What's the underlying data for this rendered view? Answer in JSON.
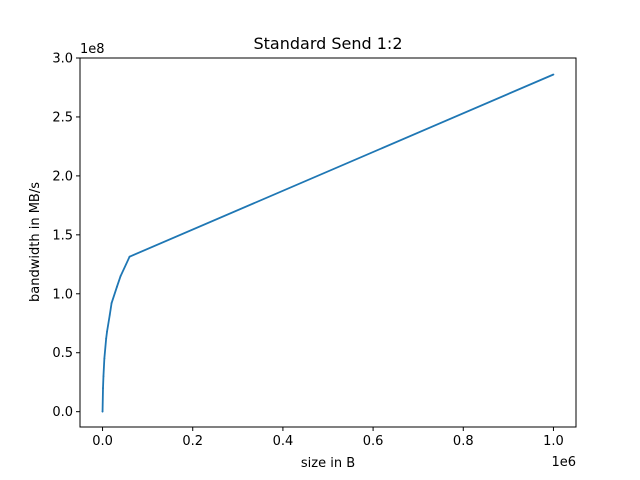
{
  "chart_data": {
    "type": "line",
    "title": "Standard Send 1:2",
    "xlabel": "size in B",
    "ylabel": "bandwidth in MB/s",
    "x_offset_label": "1e6",
    "y_offset_label": "1e8",
    "xlim": [
      -50000,
      1050000
    ],
    "ylim": [
      -13000000,
      300000000
    ],
    "x_ticks": [
      {
        "value": 0,
        "label": "0.0"
      },
      {
        "value": 200000,
        "label": "0.2"
      },
      {
        "value": 400000,
        "label": "0.4"
      },
      {
        "value": 600000,
        "label": "0.6"
      },
      {
        "value": 800000,
        "label": "0.8"
      },
      {
        "value": 1000000,
        "label": "1.0"
      }
    ],
    "y_ticks": [
      {
        "value": 0,
        "label": "0.0"
      },
      {
        "value": 50000000,
        "label": "0.5"
      },
      {
        "value": 100000000,
        "label": "1.0"
      },
      {
        "value": 150000000,
        "label": "1.5"
      },
      {
        "value": 200000000,
        "label": "2.0"
      },
      {
        "value": 250000000,
        "label": "2.5"
      },
      {
        "value": 300000000,
        "label": "3.0"
      }
    ],
    "grid": false,
    "series": [
      {
        "color": "#1f77b4",
        "x": [
          0,
          1000,
          2000,
          4000,
          8000,
          10000,
          16000,
          20000,
          32000,
          40000,
          60000,
          1000000
        ],
        "y": [
          0,
          20000000,
          30000000,
          45000000,
          62000000,
          68000000,
          82000000,
          92000000,
          106000000,
          115000000,
          131500000,
          286000000
        ]
      }
    ]
  }
}
